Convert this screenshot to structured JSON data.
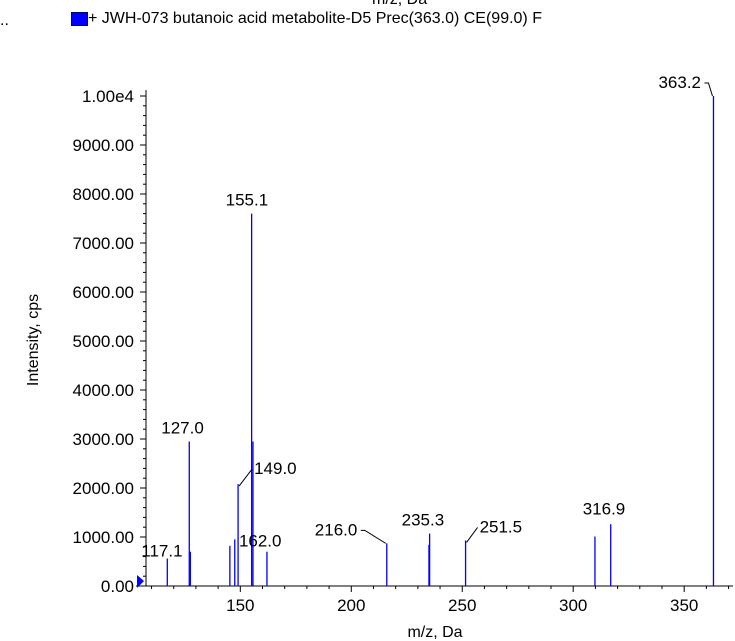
{
  "header": {
    "truncated_top_text": "m/z, Da",
    "left_ellipsis": "..",
    "legend_label": "+ JWH-073 butanoic acid metabolite-D5 Prec(363.0) CE(99.0) F"
  },
  "colors": {
    "series": "#0000ff",
    "axis": "#000000"
  },
  "chart_data": {
    "type": "bar",
    "title": "",
    "xlabel": "m/z, Da",
    "ylabel": "Intensity, cps",
    "xlim": [
      103,
      372
    ],
    "ylim": [
      0,
      10000
    ],
    "x_ticks": [
      150,
      200,
      250,
      300,
      350
    ],
    "x_tick_labels": [
      "150",
      "200",
      "250",
      "300",
      "350"
    ],
    "y_ticks": [
      0,
      1000,
      2000,
      3000,
      4000,
      5000,
      6000,
      7000,
      8000,
      9000,
      10000
    ],
    "y_tick_labels": [
      "0.00",
      "1000.00",
      "2000.00",
      "3000.00",
      "4000.00",
      "5000.00",
      "6000.00",
      "7000.00",
      "8000.00",
      "9000.00",
      "1.00e4"
    ],
    "series": [
      {
        "name": "+ JWH-073 butanoic acid metabolite-D5 Prec(363.0) CE(99.0) F",
        "peaks": [
          {
            "x": 117.1,
            "y": 560
          },
          {
            "x": 127.0,
            "y": 2950
          },
          {
            "x": 127.5,
            "y": 700
          },
          {
            "x": 145.3,
            "y": 820
          },
          {
            "x": 147.5,
            "y": 950
          },
          {
            "x": 149.0,
            "y": 2080
          },
          {
            "x": 155.1,
            "y": 7600
          },
          {
            "x": 155.7,
            "y": 2950
          },
          {
            "x": 162.0,
            "y": 700
          },
          {
            "x": 216.0,
            "y": 870
          },
          {
            "x": 235.0,
            "y": 840
          },
          {
            "x": 235.3,
            "y": 1070
          },
          {
            "x": 251.5,
            "y": 930
          },
          {
            "x": 309.8,
            "y": 1010
          },
          {
            "x": 316.9,
            "y": 1260
          },
          {
            "x": 363.2,
            "y": 10000
          }
        ],
        "annotations": [
          {
            "text": "363.2",
            "x": 363.2
          },
          {
            "text": "155.1",
            "x": 155.1
          },
          {
            "text": "127.0",
            "x": 127.0
          },
          {
            "text": "149.0",
            "x": 149.0
          },
          {
            "text": "117.1",
            "x": 117.1
          },
          {
            "text": "162.0",
            "x": 162.0
          },
          {
            "text": "216.0",
            "x": 216.0
          },
          {
            "text": "235.3",
            "x": 235.3
          },
          {
            "text": "251.5",
            "x": 251.5
          },
          {
            "text": "316.9",
            "x": 316.9
          }
        ]
      }
    ],
    "grid": false,
    "legend": "top"
  }
}
